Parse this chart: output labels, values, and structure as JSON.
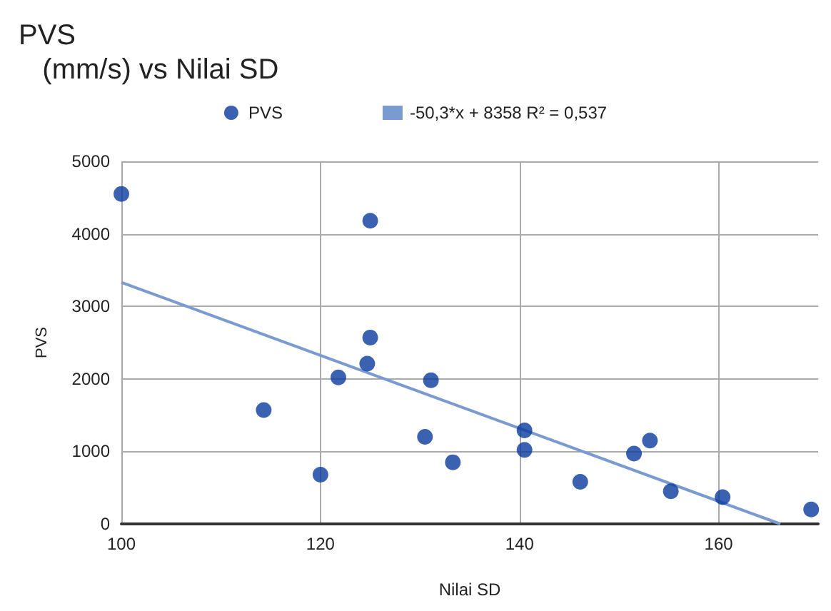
{
  "chart_data": {
    "type": "scatter",
    "title": "PVS (mm/s) vs Nilai SD",
    "xlabel": "Nilai SD",
    "ylabel": "PVS",
    "xlim": [
      100,
      170
    ],
    "xticks": [
      100,
      120,
      140,
      160
    ],
    "ylim": [
      0,
      5000
    ],
    "yticks": [
      0,
      1000,
      2000,
      3000,
      4000,
      5000
    ],
    "grid": true,
    "legend": "top",
    "marker": "circle",
    "series": [
      {
        "name": "PVS",
        "color": "#0a3a9e",
        "x": [
          100,
          114.3,
          120,
          121.8,
          124.7,
          125,
          125,
          130.5,
          131.1,
          133.3,
          140.5,
          140.5,
          146.1,
          151.5,
          153.1,
          155.2,
          160.4,
          169.3
        ],
        "values": [
          4550,
          1570,
          680,
          2020,
          2210,
          2570,
          4180,
          1200,
          1980,
          850,
          1290,
          1020,
          580,
          970,
          1150,
          450,
          370,
          200
        ]
      },
      {
        "name": "-50,3*x + 8358 R² = 0,537",
        "type": "line",
        "color": "#7a9bd0",
        "marker": "none",
        "x": [
          100,
          166.2
        ],
        "values": [
          3330,
          0
        ]
      }
    ]
  }
}
